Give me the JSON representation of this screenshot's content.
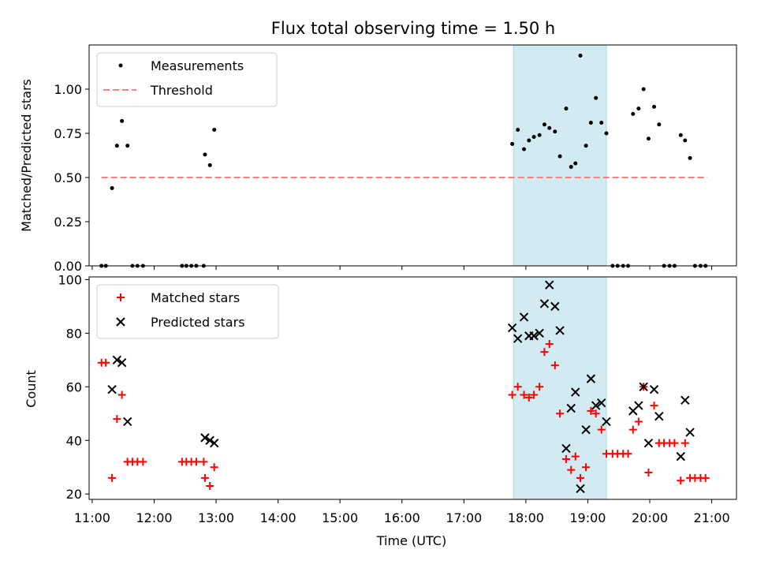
{
  "chart_data": {
    "type": "scatter",
    "title": "Flux total observing time = 1.50 h",
    "xlabel": "Time (UTC)",
    "x_unit": "hours UTC",
    "xlim": [
      10.95,
      21.4
    ],
    "x_ticks": [
      11,
      12,
      13,
      14,
      15,
      16,
      17,
      18,
      19,
      20,
      21
    ],
    "x_tick_labels": [
      "11:00",
      "12:00",
      "13:00",
      "14:00",
      "15:00",
      "16:00",
      "17:00",
      "18:00",
      "19:00",
      "20:00",
      "21:00"
    ],
    "highlight_span": [
      17.8,
      19.3
    ],
    "colors": {
      "matched": "#ff0000",
      "predicted": "#000000",
      "threshold": "#ff7f7f",
      "span": "#add8e6",
      "measurement": "#000000"
    },
    "panels": [
      {
        "id": "ratio",
        "ylabel": "Matched/Predicted stars",
        "ylim": [
          0,
          1.25
        ],
        "y_ticks": [
          0.0,
          0.25,
          0.5,
          0.75,
          1.0
        ],
        "y_tick_labels": [
          "0.00",
          "0.25",
          "0.50",
          "0.75",
          "1.00"
        ],
        "legend": [
          {
            "label": "Measurements",
            "marker": "dot"
          },
          {
            "label": "Threshold",
            "marker": "dash"
          }
        ],
        "threshold": {
          "value": 0.5,
          "x_range": [
            11.15,
            20.93
          ]
        },
        "measurements": [
          [
            11.15,
            0.0
          ],
          [
            11.22,
            0.0
          ],
          [
            11.32,
            0.44
          ],
          [
            11.4,
            0.68
          ],
          [
            11.48,
            0.82
          ],
          [
            11.57,
            0.68
          ],
          [
            11.65,
            0.0
          ],
          [
            11.73,
            0.0
          ],
          [
            11.82,
            0.0
          ],
          [
            12.45,
            0.0
          ],
          [
            12.52,
            0.0
          ],
          [
            12.6,
            0.0
          ],
          [
            12.68,
            0.0
          ],
          [
            12.8,
            0.0
          ],
          [
            12.82,
            0.63
          ],
          [
            12.9,
            0.57
          ],
          [
            12.97,
            0.77
          ],
          [
            17.78,
            0.69
          ],
          [
            17.87,
            0.77
          ],
          [
            17.97,
            0.66
          ],
          [
            18.05,
            0.71
          ],
          [
            18.13,
            0.73
          ],
          [
            18.22,
            0.74
          ],
          [
            18.3,
            0.8
          ],
          [
            18.38,
            0.78
          ],
          [
            18.47,
            0.76
          ],
          [
            18.55,
            0.62
          ],
          [
            18.65,
            0.89
          ],
          [
            18.73,
            0.56
          ],
          [
            18.8,
            0.58
          ],
          [
            18.88,
            1.19
          ],
          [
            18.97,
            0.68
          ],
          [
            19.05,
            0.81
          ],
          [
            19.13,
            0.95
          ],
          [
            19.22,
            0.81
          ],
          [
            19.3,
            0.75
          ],
          [
            19.4,
            0.0
          ],
          [
            19.48,
            0.0
          ],
          [
            19.57,
            0.0
          ],
          [
            19.65,
            0.0
          ],
          [
            19.73,
            0.86
          ],
          [
            19.82,
            0.89
          ],
          [
            19.9,
            1.0
          ],
          [
            19.98,
            0.72
          ],
          [
            20.07,
            0.9
          ],
          [
            20.15,
            0.8
          ],
          [
            20.23,
            0.0
          ],
          [
            20.32,
            0.0
          ],
          [
            20.4,
            0.0
          ],
          [
            20.5,
            0.74
          ],
          [
            20.57,
            0.71
          ],
          [
            20.65,
            0.61
          ],
          [
            20.73,
            0.0
          ],
          [
            20.82,
            0.0
          ],
          [
            20.9,
            0.0
          ]
        ]
      },
      {
        "id": "count",
        "ylabel": "Count",
        "ylim": [
          18,
          101
        ],
        "y_ticks": [
          20,
          40,
          60,
          80,
          100
        ],
        "y_tick_labels": [
          "20",
          "40",
          "60",
          "80",
          "100"
        ],
        "legend": [
          {
            "label": "Matched stars",
            "marker": "plus"
          },
          {
            "label": "Predicted stars",
            "marker": "cross"
          }
        ],
        "matched_stars": [
          [
            11.15,
            69
          ],
          [
            11.22,
            69
          ],
          [
            11.32,
            26
          ],
          [
            11.4,
            48
          ],
          [
            11.48,
            57
          ],
          [
            11.57,
            32
          ],
          [
            11.65,
            32
          ],
          [
            11.73,
            32
          ],
          [
            11.82,
            32
          ],
          [
            12.45,
            32
          ],
          [
            12.52,
            32
          ],
          [
            12.6,
            32
          ],
          [
            12.68,
            32
          ],
          [
            12.8,
            32
          ],
          [
            12.82,
            26
          ],
          [
            12.9,
            23
          ],
          [
            12.97,
            30
          ],
          [
            17.78,
            57
          ],
          [
            17.87,
            60
          ],
          [
            17.97,
            57
          ],
          [
            18.05,
            56
          ],
          [
            18.13,
            57
          ],
          [
            18.22,
            60
          ],
          [
            18.3,
            73
          ],
          [
            18.38,
            76
          ],
          [
            18.47,
            68
          ],
          [
            18.55,
            50
          ],
          [
            18.65,
            33
          ],
          [
            18.73,
            29
          ],
          [
            18.8,
            34
          ],
          [
            18.88,
            26
          ],
          [
            18.97,
            30
          ],
          [
            19.05,
            51
          ],
          [
            19.13,
            50
          ],
          [
            19.22,
            44
          ],
          [
            19.3,
            35
          ],
          [
            19.4,
            35
          ],
          [
            19.48,
            35
          ],
          [
            19.57,
            35
          ],
          [
            19.65,
            35
          ],
          [
            19.73,
            44
          ],
          [
            19.82,
            47
          ],
          [
            19.9,
            60
          ],
          [
            19.98,
            28
          ],
          [
            20.07,
            53
          ],
          [
            20.15,
            39
          ],
          [
            20.23,
            39
          ],
          [
            20.32,
            39
          ],
          [
            20.4,
            39
          ],
          [
            20.5,
            25
          ],
          [
            20.57,
            39
          ],
          [
            20.65,
            26
          ],
          [
            20.73,
            26
          ],
          [
            20.82,
            26
          ],
          [
            20.9,
            26
          ]
        ],
        "predicted_stars": [
          [
            11.32,
            59
          ],
          [
            11.4,
            70
          ],
          [
            11.48,
            69
          ],
          [
            11.57,
            47
          ],
          [
            12.82,
            41
          ],
          [
            12.9,
            40
          ],
          [
            12.97,
            39
          ],
          [
            17.78,
            82
          ],
          [
            17.87,
            78
          ],
          [
            17.97,
            86
          ],
          [
            18.05,
            79
          ],
          [
            18.13,
            79
          ],
          [
            18.22,
            80
          ],
          [
            18.3,
            91
          ],
          [
            18.38,
            98
          ],
          [
            18.47,
            90
          ],
          [
            18.55,
            81
          ],
          [
            18.65,
            37
          ],
          [
            18.73,
            52
          ],
          [
            18.8,
            58
          ],
          [
            18.88,
            22
          ],
          [
            18.97,
            44
          ],
          [
            19.05,
            63
          ],
          [
            19.13,
            53
          ],
          [
            19.22,
            54
          ],
          [
            19.3,
            47
          ],
          [
            19.73,
            51
          ],
          [
            19.82,
            53
          ],
          [
            19.9,
            60
          ],
          [
            19.98,
            39
          ],
          [
            20.07,
            59
          ],
          [
            20.15,
            49
          ],
          [
            20.5,
            34
          ],
          [
            20.57,
            55
          ],
          [
            20.65,
            43
          ]
        ]
      }
    ]
  }
}
